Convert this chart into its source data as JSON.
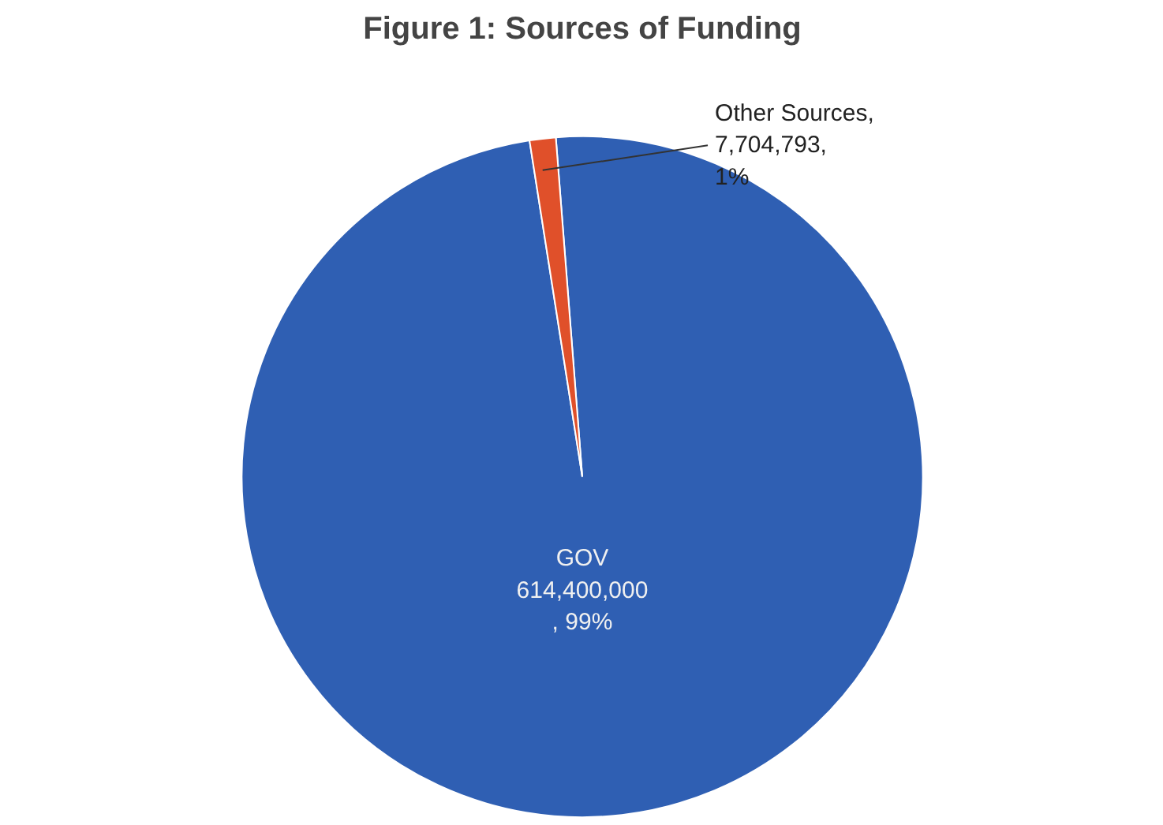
{
  "chart_data": {
    "type": "pie",
    "title": "Figure 1: Sources of Funding",
    "categories": [
      "GOV",
      "Other Sources"
    ],
    "values": [
      614400000,
      7704793
    ],
    "colors": [
      "#2f5fb3",
      "#e0502a"
    ],
    "value_labels": [
      "\n614,400,000\n, 99%",
      ",\n7,704,793,\n1%"
    ],
    "legend": false
  }
}
